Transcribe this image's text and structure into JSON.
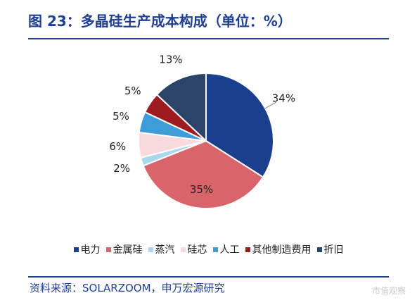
{
  "title": "图 23：多晶硅生产成本构成（单位：%）",
  "source": "资料来源：SOLARZOOM，申万宏源研究",
  "watermark": "市值观察",
  "chart_data": {
    "type": "pie",
    "unit": "%",
    "slices": [
      {
        "name": "电力",
        "value": 34,
        "label": "34%",
        "color": "#1b3f8f"
      },
      {
        "name": "金属硅",
        "value": 35,
        "label": "35%",
        "color": "#d9646a"
      },
      {
        "name": "蒸汽",
        "value": 2,
        "label": "2%",
        "color": "#a9d8ec"
      },
      {
        "name": "硅芯",
        "value": 6,
        "label": "6%",
        "color": "#f7d9de"
      },
      {
        "name": "人工",
        "value": 5,
        "label": "5%",
        "color": "#3e9cd9"
      },
      {
        "name": "其他制造费用",
        "value": 5,
        "label": "5%",
        "color": "#9e1b20"
      },
      {
        "name": "折旧",
        "value": 13,
        "label": "13%",
        "color": "#2c4468"
      }
    ],
    "legend_position": "bottom"
  }
}
